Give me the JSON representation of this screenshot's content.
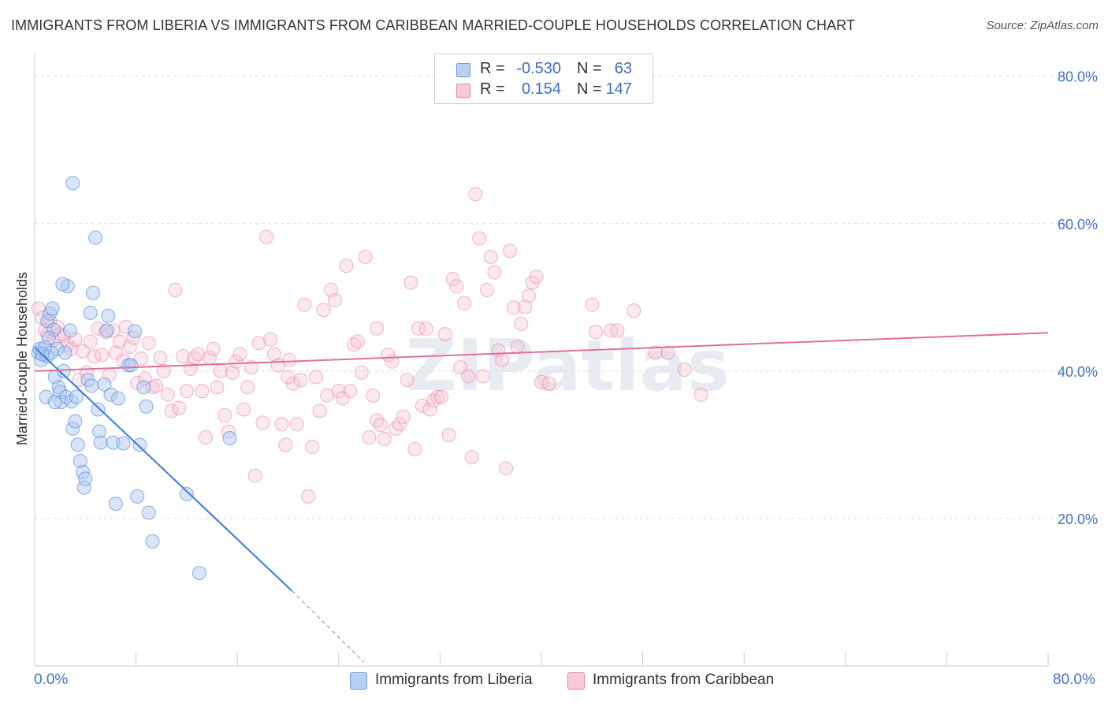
{
  "title": "IMMIGRANTS FROM LIBERIA VS IMMIGRANTS FROM CARIBBEAN MARRIED-COUPLE HOUSEHOLDS CORRELATION CHART",
  "source": "Source: ZipAtlas.com",
  "watermark": "ZIPatlas",
  "legend": {
    "rows": [
      {
        "r_label": "R =",
        "r_value": "-0.530",
        "n_label": "N =",
        "n_value": "63",
        "color": "#8fb4ea"
      },
      {
        "r_label": "R =",
        "r_value": "0.154",
        "n_label": "N =",
        "n_value": "147",
        "color": "#f2a8c0"
      }
    ]
  },
  "bottom_legend": [
    {
      "label": "Immigrants from Liberia",
      "color": "#8fb4ea"
    },
    {
      "label": "Immigrants from Caribbean",
      "color": "#f2a8c0"
    }
  ],
  "x_tick_labels": {
    "left": "0.0%",
    "right": "80.0%"
  },
  "chart_data": {
    "type": "scatter",
    "title": "IMMIGRANTS FROM LIBERIA VS IMMIGRANTS FROM CARIBBEAN MARRIED-COUPLE HOUSEHOLDS CORRELATION CHART",
    "xlabel": "",
    "ylabel": "Married-couple Households",
    "xlim": [
      0,
      80
    ],
    "ylim": [
      0,
      82
    ],
    "y_ticks": [
      20,
      40,
      60,
      80
    ],
    "y_tick_labels": [
      "20.0%",
      "40.0%",
      "60.0%",
      "80.0%"
    ],
    "x_tick_labels": [
      "0.0%",
      "80.0%"
    ],
    "grid": true,
    "legend_position": "top-center",
    "series": [
      {
        "name": "Immigrants from Liberia",
        "color": "#5b8fd9",
        "fill": "#a9c6f0",
        "R": -0.53,
        "N": 63,
        "trend": {
          "x": [
            0,
            20.3
          ],
          "y": [
            43.2,
            10.2
          ],
          "dashed_extension": {
            "x": [
              20.3,
              26
            ],
            "y": [
              10.2,
              0.5
            ]
          }
        },
        "points": [
          [
            0.3,
            42.5
          ],
          [
            0.4,
            43.0
          ],
          [
            0.5,
            41.5
          ],
          [
            0.8,
            43.2
          ],
          [
            1.0,
            46.8
          ],
          [
            1.0,
            42.0
          ],
          [
            0.9,
            36.5
          ],
          [
            1.2,
            47.8
          ],
          [
            1.4,
            48.5
          ],
          [
            1.5,
            45.6
          ],
          [
            1.6,
            39.2
          ],
          [
            1.8,
            43.0
          ],
          [
            1.9,
            37.8
          ],
          [
            2.0,
            37.2
          ],
          [
            2.1,
            35.8
          ],
          [
            1.3,
            42.5
          ],
          [
            2.3,
            40.0
          ],
          [
            2.4,
            42.5
          ],
          [
            2.5,
            36.5
          ],
          [
            2.6,
            51.5
          ],
          [
            2.8,
            45.5
          ],
          [
            2.9,
            35.9
          ],
          [
            3.0,
            32.2
          ],
          [
            2.2,
            51.8
          ],
          [
            3.2,
            33.2
          ],
          [
            3.3,
            36.5
          ],
          [
            3.4,
            30.0
          ],
          [
            3.6,
            27.8
          ],
          [
            3.8,
            26.3
          ],
          [
            3.9,
            24.2
          ],
          [
            4.0,
            25.4
          ],
          [
            4.2,
            38.8
          ],
          [
            4.4,
            47.9
          ],
          [
            4.6,
            50.6
          ],
          [
            4.8,
            58.1
          ],
          [
            5.0,
            34.8
          ],
          [
            5.1,
            31.8
          ],
          [
            5.2,
            30.3
          ],
          [
            5.8,
            47.5
          ],
          [
            6.0,
            36.8
          ],
          [
            6.2,
            30.3
          ],
          [
            6.4,
            22.0
          ],
          [
            6.6,
            36.3
          ],
          [
            7.0,
            30.2
          ],
          [
            7.4,
            40.8
          ],
          [
            7.6,
            40.8
          ],
          [
            7.9,
            45.4
          ],
          [
            8.1,
            23.0
          ],
          [
            8.3,
            30.0
          ],
          [
            8.6,
            37.8
          ],
          [
            8.8,
            35.2
          ],
          [
            9.0,
            20.8
          ],
          [
            9.3,
            16.9
          ],
          [
            3.0,
            65.5
          ],
          [
            4.5,
            38.0
          ],
          [
            5.5,
            38.2
          ],
          [
            5.7,
            45.5
          ],
          [
            1.6,
            35.8
          ],
          [
            12.0,
            23.3
          ],
          [
            13.0,
            12.6
          ],
          [
            15.4,
            30.9
          ],
          [
            0.6,
            42.3
          ],
          [
            1.1,
            44.5
          ]
        ]
      },
      {
        "name": "Immigrants from Caribbean",
        "color": "#e8799f",
        "fill": "#f6bfd0",
        "R": 0.154,
        "N": 147,
        "trend": {
          "x": [
            0,
            80
          ],
          "y": [
            40.0,
            45.2
          ]
        },
        "points": [
          [
            0.3,
            48.5
          ],
          [
            0.6,
            47.2
          ],
          [
            0.8,
            45.5
          ],
          [
            1.0,
            45.0
          ],
          [
            1.2,
            46.8
          ],
          [
            1.5,
            44.2
          ],
          [
            1.8,
            46.0
          ],
          [
            2.0,
            45.0
          ],
          [
            2.3,
            44.8
          ],
          [
            2.6,
            43.5
          ],
          [
            2.9,
            43.0
          ],
          [
            3.2,
            44.3
          ],
          [
            3.5,
            38.8
          ],
          [
            3.8,
            42.7
          ],
          [
            4.1,
            39.8
          ],
          [
            4.4,
            44.0
          ],
          [
            4.7,
            42.0
          ],
          [
            5.0,
            45.8
          ],
          [
            5.3,
            42.2
          ],
          [
            5.6,
            45.3
          ],
          [
            5.9,
            39.5
          ],
          [
            6.2,
            45.5
          ],
          [
            6.4,
            42.5
          ],
          [
            6.7,
            44.0
          ],
          [
            7.0,
            41.4
          ],
          [
            7.2,
            46.0
          ],
          [
            7.5,
            43.3
          ],
          [
            7.8,
            44.5
          ],
          [
            8.1,
            38.4
          ],
          [
            8.4,
            41.7
          ],
          [
            8.7,
            39.0
          ],
          [
            9.0,
            43.8
          ],
          [
            9.3,
            37.8
          ],
          [
            9.6,
            38.0
          ],
          [
            9.9,
            41.8
          ],
          [
            10.2,
            40.0
          ],
          [
            10.5,
            36.8
          ],
          [
            10.8,
            34.6
          ],
          [
            11.1,
            51.0
          ],
          [
            11.4,
            35.0
          ],
          [
            11.7,
            42.0
          ],
          [
            12.0,
            37.3
          ],
          [
            12.3,
            40.3
          ],
          [
            12.6,
            41.8
          ],
          [
            12.9,
            42.3
          ],
          [
            13.2,
            37.3
          ],
          [
            13.5,
            31.0
          ],
          [
            13.8,
            41.8
          ],
          [
            14.1,
            43.0
          ],
          [
            14.4,
            37.8
          ],
          [
            14.7,
            40.0
          ],
          [
            15.0,
            34.0
          ],
          [
            15.3,
            31.8
          ],
          [
            15.6,
            39.8
          ],
          [
            15.9,
            41.3
          ],
          [
            16.2,
            42.3
          ],
          [
            16.5,
            34.8
          ],
          [
            16.8,
            37.8
          ],
          [
            17.1,
            40.5
          ],
          [
            17.4,
            25.8
          ],
          [
            17.7,
            43.8
          ],
          [
            18.0,
            33.0
          ],
          [
            18.3,
            58.2
          ],
          [
            18.6,
            44.3
          ],
          [
            18.9,
            42.3
          ],
          [
            19.2,
            40.8
          ],
          [
            19.5,
            32.8
          ],
          [
            19.8,
            30.0
          ],
          [
            20.1,
            41.5
          ],
          [
            20.4,
            38.3
          ],
          [
            20.7,
            32.8
          ],
          [
            21.0,
            38.8
          ],
          [
            21.3,
            49.0
          ],
          [
            21.6,
            23.0
          ],
          [
            21.9,
            29.7
          ],
          [
            22.2,
            39.2
          ],
          [
            22.5,
            34.6
          ],
          [
            22.8,
            48.3
          ],
          [
            23.1,
            36.7
          ],
          [
            23.4,
            51.0
          ],
          [
            23.7,
            49.6
          ],
          [
            24.0,
            37.3
          ],
          [
            24.3,
            36.3
          ],
          [
            24.6,
            54.3
          ],
          [
            24.9,
            37.3
          ],
          [
            25.2,
            43.6
          ],
          [
            25.5,
            44.0
          ],
          [
            25.8,
            39.8
          ],
          [
            26.1,
            55.5
          ],
          [
            26.4,
            31.0
          ],
          [
            26.7,
            36.7
          ],
          [
            27.0,
            33.3
          ],
          [
            27.3,
            32.7
          ],
          [
            27.6,
            30.8
          ],
          [
            27.9,
            42.2
          ],
          [
            28.2,
            41.3
          ],
          [
            28.5,
            32.2
          ],
          [
            28.8,
            32.8
          ],
          [
            29.1,
            33.8
          ],
          [
            29.4,
            38.8
          ],
          [
            29.7,
            52.0
          ],
          [
            30.0,
            29.4
          ],
          [
            30.3,
            45.8
          ],
          [
            30.6,
            35.3
          ],
          [
            30.9,
            45.7
          ],
          [
            31.2,
            34.8
          ],
          [
            31.5,
            36.0
          ],
          [
            31.8,
            36.5
          ],
          [
            32.1,
            36.5
          ],
          [
            32.4,
            45.0
          ],
          [
            32.7,
            31.3
          ],
          [
            33.0,
            52.5
          ],
          [
            33.3,
            51.5
          ],
          [
            33.6,
            40.5
          ],
          [
            33.9,
            49.2
          ],
          [
            34.2,
            39.3
          ],
          [
            34.5,
            28.3
          ],
          [
            34.8,
            64.0
          ],
          [
            35.1,
            58.0
          ],
          [
            35.4,
            39.3
          ],
          [
            35.7,
            51.0
          ],
          [
            36.0,
            55.5
          ],
          [
            36.3,
            53.4
          ],
          [
            36.6,
            42.8
          ],
          [
            36.9,
            41.5
          ],
          [
            37.2,
            26.8
          ],
          [
            37.5,
            56.3
          ],
          [
            37.8,
            48.6
          ],
          [
            38.1,
            43.3
          ],
          [
            38.4,
            46.4
          ],
          [
            38.7,
            48.7
          ],
          [
            39.0,
            50.2
          ],
          [
            39.3,
            52.0
          ],
          [
            39.6,
            52.8
          ],
          [
            40.0,
            38.5
          ],
          [
            44.0,
            49.0
          ],
          [
            44.3,
            45.3
          ],
          [
            45.5,
            45.5
          ],
          [
            46.0,
            45.5
          ],
          [
            47.3,
            48.2
          ],
          [
            49.0,
            42.5
          ],
          [
            50.0,
            42.5
          ],
          [
            51.3,
            40.2
          ],
          [
            52.6,
            36.8
          ],
          [
            40.6,
            38.3
          ],
          [
            27.0,
            45.8
          ],
          [
            20.0,
            39.2
          ]
        ]
      }
    ]
  }
}
